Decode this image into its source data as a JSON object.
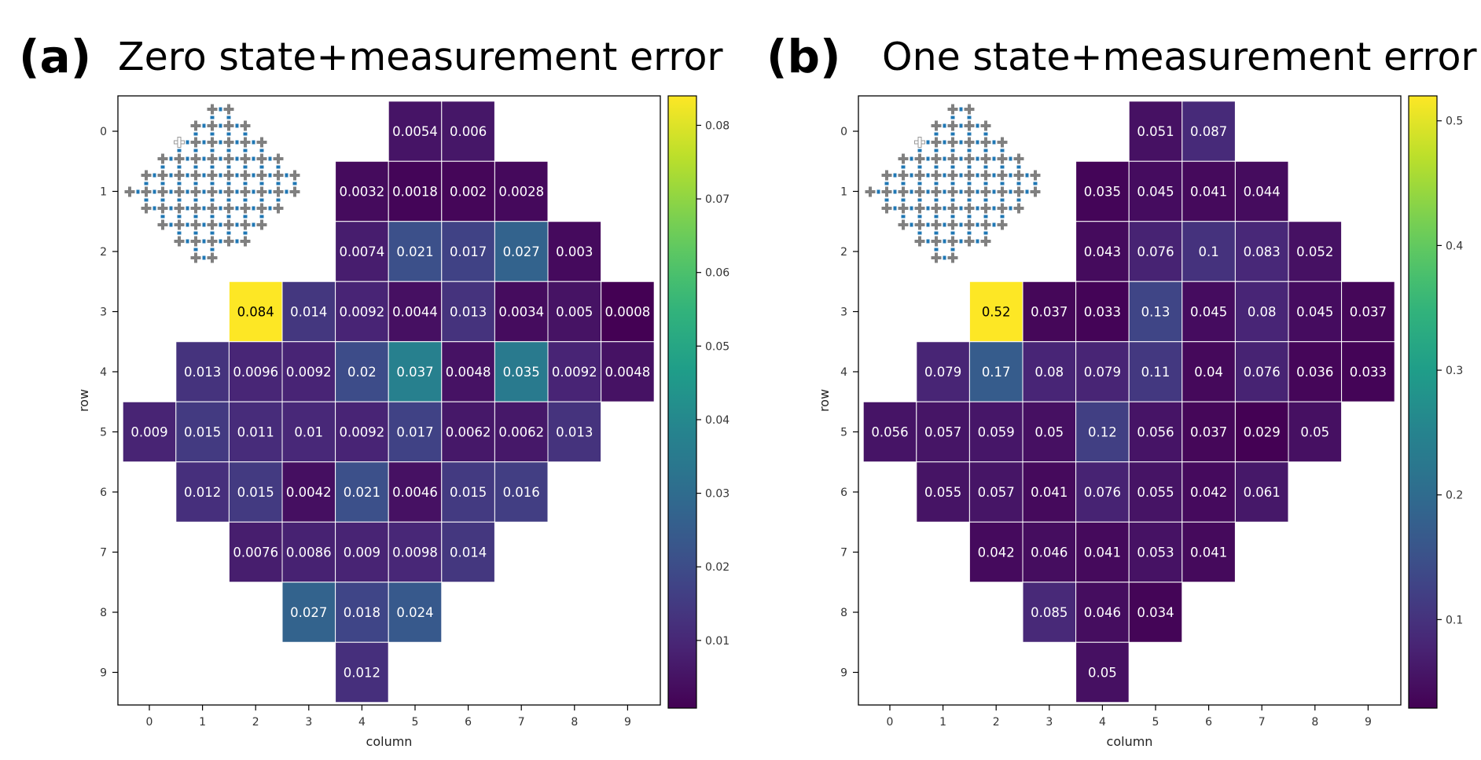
{
  "chart_data": [
    {
      "type": "heatmap",
      "panel_label": "(a)",
      "title": "Zero state+measurement error",
      "xlabel": "column",
      "ylabel": "row",
      "x_ticks": [
        "0",
        "1",
        "2",
        "3",
        "4",
        "5",
        "6",
        "7",
        "8",
        "9"
      ],
      "y_ticks": [
        "0",
        "1",
        "2",
        "3",
        "4",
        "5",
        "6",
        "7",
        "8",
        "9"
      ],
      "colormap": "viridis",
      "vmin": 0.0008,
      "vmax": 0.084,
      "colorbar_ticks": [
        0.01,
        0.02,
        0.03,
        0.04,
        0.05,
        0.06,
        0.07,
        0.08
      ],
      "colorbar_tick_labels": [
        "0.01",
        "0.02",
        "0.03",
        "0.04",
        "0.05",
        "0.06",
        "0.07",
        "0.08"
      ],
      "cells": [
        {
          "row": 0,
          "col": 5,
          "value": 0.0054,
          "label": "0.0054"
        },
        {
          "row": 0,
          "col": 6,
          "value": 0.006,
          "label": "0.006"
        },
        {
          "row": 1,
          "col": 4,
          "value": 0.0032,
          "label": "0.0032"
        },
        {
          "row": 1,
          "col": 5,
          "value": 0.0018,
          "label": "0.0018"
        },
        {
          "row": 1,
          "col": 6,
          "value": 0.002,
          "label": "0.002"
        },
        {
          "row": 1,
          "col": 7,
          "value": 0.0028,
          "label": "0.0028"
        },
        {
          "row": 2,
          "col": 4,
          "value": 0.0074,
          "label": "0.0074"
        },
        {
          "row": 2,
          "col": 5,
          "value": 0.021,
          "label": "0.021"
        },
        {
          "row": 2,
          "col": 6,
          "value": 0.017,
          "label": "0.017"
        },
        {
          "row": 2,
          "col": 7,
          "value": 0.027,
          "label": "0.027"
        },
        {
          "row": 2,
          "col": 8,
          "value": 0.003,
          "label": "0.003"
        },
        {
          "row": 3,
          "col": 2,
          "value": 0.084,
          "label": "0.084"
        },
        {
          "row": 3,
          "col": 3,
          "value": 0.014,
          "label": "0.014"
        },
        {
          "row": 3,
          "col": 4,
          "value": 0.0092,
          "label": "0.0092"
        },
        {
          "row": 3,
          "col": 5,
          "value": 0.0044,
          "label": "0.0044"
        },
        {
          "row": 3,
          "col": 6,
          "value": 0.013,
          "label": "0.013"
        },
        {
          "row": 3,
          "col": 7,
          "value": 0.0034,
          "label": "0.0034"
        },
        {
          "row": 3,
          "col": 8,
          "value": 0.005,
          "label": "0.005"
        },
        {
          "row": 3,
          "col": 9,
          "value": 0.0008,
          "label": "0.0008"
        },
        {
          "row": 4,
          "col": 1,
          "value": 0.013,
          "label": "0.013"
        },
        {
          "row": 4,
          "col": 2,
          "value": 0.0096,
          "label": "0.0096"
        },
        {
          "row": 4,
          "col": 3,
          "value": 0.0092,
          "label": "0.0092"
        },
        {
          "row": 4,
          "col": 4,
          "value": 0.02,
          "label": "0.02"
        },
        {
          "row": 4,
          "col": 5,
          "value": 0.037,
          "label": "0.037"
        },
        {
          "row": 4,
          "col": 6,
          "value": 0.0048,
          "label": "0.0048"
        },
        {
          "row": 4,
          "col": 7,
          "value": 0.035,
          "label": "0.035"
        },
        {
          "row": 4,
          "col": 8,
          "value": 0.0092,
          "label": "0.0092"
        },
        {
          "row": 4,
          "col": 9,
          "value": 0.0048,
          "label": "0.0048"
        },
        {
          "row": 5,
          "col": 0,
          "value": 0.009,
          "label": "0.009"
        },
        {
          "row": 5,
          "col": 1,
          "value": 0.015,
          "label": "0.015"
        },
        {
          "row": 5,
          "col": 2,
          "value": 0.011,
          "label": "0.011"
        },
        {
          "row": 5,
          "col": 3,
          "value": 0.01,
          "label": "0.01"
        },
        {
          "row": 5,
          "col": 4,
          "value": 0.0092,
          "label": "0.0092"
        },
        {
          "row": 5,
          "col": 5,
          "value": 0.017,
          "label": "0.017"
        },
        {
          "row": 5,
          "col": 6,
          "value": 0.0062,
          "label": "0.0062"
        },
        {
          "row": 5,
          "col": 7,
          "value": 0.0062,
          "label": "0.0062"
        },
        {
          "row": 5,
          "col": 8,
          "value": 0.013,
          "label": "0.013"
        },
        {
          "row": 6,
          "col": 1,
          "value": 0.012,
          "label": "0.012"
        },
        {
          "row": 6,
          "col": 2,
          "value": 0.015,
          "label": "0.015"
        },
        {
          "row": 6,
          "col": 3,
          "value": 0.0042,
          "label": "0.0042"
        },
        {
          "row": 6,
          "col": 4,
          "value": 0.021,
          "label": "0.021"
        },
        {
          "row": 6,
          "col": 5,
          "value": 0.0046,
          "label": "0.0046"
        },
        {
          "row": 6,
          "col": 6,
          "value": 0.015,
          "label": "0.015"
        },
        {
          "row": 6,
          "col": 7,
          "value": 0.016,
          "label": "0.016"
        },
        {
          "row": 7,
          "col": 2,
          "value": 0.0076,
          "label": "0.0076"
        },
        {
          "row": 7,
          "col": 3,
          "value": 0.0086,
          "label": "0.0086"
        },
        {
          "row": 7,
          "col": 4,
          "value": 0.009,
          "label": "0.009"
        },
        {
          "row": 7,
          "col": 5,
          "value": 0.0098,
          "label": "0.0098"
        },
        {
          "row": 7,
          "col": 6,
          "value": 0.014,
          "label": "0.014"
        },
        {
          "row": 8,
          "col": 3,
          "value": 0.027,
          "label": "0.027"
        },
        {
          "row": 8,
          "col": 4,
          "value": 0.018,
          "label": "0.018"
        },
        {
          "row": 8,
          "col": 5,
          "value": 0.024,
          "label": "0.024"
        },
        {
          "row": 9,
          "col": 4,
          "value": 0.012,
          "label": "0.012"
        }
      ],
      "inset": "qubit-lattice-diagram"
    },
    {
      "type": "heatmap",
      "panel_label": "(b)",
      "title": "One state+measurement error",
      "xlabel": "column",
      "ylabel": "row",
      "x_ticks": [
        "0",
        "1",
        "2",
        "3",
        "4",
        "5",
        "6",
        "7",
        "8",
        "9"
      ],
      "y_ticks": [
        "0",
        "1",
        "2",
        "3",
        "4",
        "5",
        "6",
        "7",
        "8",
        "9"
      ],
      "colormap": "viridis",
      "vmin": 0.029,
      "vmax": 0.52,
      "colorbar_ticks": [
        0.1,
        0.2,
        0.3,
        0.4,
        0.5
      ],
      "colorbar_tick_labels": [
        "0.1",
        "0.2",
        "0.3",
        "0.4",
        "0.5"
      ],
      "cells": [
        {
          "row": 0,
          "col": 5,
          "value": 0.051,
          "label": "0.051"
        },
        {
          "row": 0,
          "col": 6,
          "value": 0.087,
          "label": "0.087"
        },
        {
          "row": 1,
          "col": 4,
          "value": 0.035,
          "label": "0.035"
        },
        {
          "row": 1,
          "col": 5,
          "value": 0.045,
          "label": "0.045"
        },
        {
          "row": 1,
          "col": 6,
          "value": 0.041,
          "label": "0.041"
        },
        {
          "row": 1,
          "col": 7,
          "value": 0.044,
          "label": "0.044"
        },
        {
          "row": 2,
          "col": 4,
          "value": 0.043,
          "label": "0.043"
        },
        {
          "row": 2,
          "col": 5,
          "value": 0.076,
          "label": "0.076"
        },
        {
          "row": 2,
          "col": 6,
          "value": 0.1,
          "label": "0.1"
        },
        {
          "row": 2,
          "col": 7,
          "value": 0.083,
          "label": "0.083"
        },
        {
          "row": 2,
          "col": 8,
          "value": 0.052,
          "label": "0.052"
        },
        {
          "row": 3,
          "col": 2,
          "value": 0.52,
          "label": "0.52"
        },
        {
          "row": 3,
          "col": 3,
          "value": 0.037,
          "label": "0.037"
        },
        {
          "row": 3,
          "col": 4,
          "value": 0.033,
          "label": "0.033"
        },
        {
          "row": 3,
          "col": 5,
          "value": 0.13,
          "label": "0.13"
        },
        {
          "row": 3,
          "col": 6,
          "value": 0.045,
          "label": "0.045"
        },
        {
          "row": 3,
          "col": 7,
          "value": 0.08,
          "label": "0.08"
        },
        {
          "row": 3,
          "col": 8,
          "value": 0.045,
          "label": "0.045"
        },
        {
          "row": 3,
          "col": 9,
          "value": 0.037,
          "label": "0.037"
        },
        {
          "row": 4,
          "col": 1,
          "value": 0.079,
          "label": "0.079"
        },
        {
          "row": 4,
          "col": 2,
          "value": 0.17,
          "label": "0.17"
        },
        {
          "row": 4,
          "col": 3,
          "value": 0.08,
          "label": "0.08"
        },
        {
          "row": 4,
          "col": 4,
          "value": 0.079,
          "label": "0.079"
        },
        {
          "row": 4,
          "col": 5,
          "value": 0.11,
          "label": "0.11"
        },
        {
          "row": 4,
          "col": 6,
          "value": 0.04,
          "label": "0.04"
        },
        {
          "row": 4,
          "col": 7,
          "value": 0.076,
          "label": "0.076"
        },
        {
          "row": 4,
          "col": 8,
          "value": 0.036,
          "label": "0.036"
        },
        {
          "row": 4,
          "col": 9,
          "value": 0.033,
          "label": "0.033"
        },
        {
          "row": 5,
          "col": 0,
          "value": 0.056,
          "label": "0.056"
        },
        {
          "row": 5,
          "col": 1,
          "value": 0.057,
          "label": "0.057"
        },
        {
          "row": 5,
          "col": 2,
          "value": 0.059,
          "label": "0.059"
        },
        {
          "row": 5,
          "col": 3,
          "value": 0.05,
          "label": "0.05"
        },
        {
          "row": 5,
          "col": 4,
          "value": 0.12,
          "label": "0.12"
        },
        {
          "row": 5,
          "col": 5,
          "value": 0.056,
          "label": "0.056"
        },
        {
          "row": 5,
          "col": 6,
          "value": 0.037,
          "label": "0.037"
        },
        {
          "row": 5,
          "col": 7,
          "value": 0.029,
          "label": "0.029"
        },
        {
          "row": 5,
          "col": 8,
          "value": 0.05,
          "label": "0.05"
        },
        {
          "row": 6,
          "col": 1,
          "value": 0.055,
          "label": "0.055"
        },
        {
          "row": 6,
          "col": 2,
          "value": 0.057,
          "label": "0.057"
        },
        {
          "row": 6,
          "col": 3,
          "value": 0.041,
          "label": "0.041"
        },
        {
          "row": 6,
          "col": 4,
          "value": 0.076,
          "label": "0.076"
        },
        {
          "row": 6,
          "col": 5,
          "value": 0.055,
          "label": "0.055"
        },
        {
          "row": 6,
          "col": 6,
          "value": 0.042,
          "label": "0.042"
        },
        {
          "row": 6,
          "col": 7,
          "value": 0.061,
          "label": "0.061"
        },
        {
          "row": 7,
          "col": 2,
          "value": 0.042,
          "label": "0.042"
        },
        {
          "row": 7,
          "col": 3,
          "value": 0.046,
          "label": "0.046"
        },
        {
          "row": 7,
          "col": 4,
          "value": 0.041,
          "label": "0.041"
        },
        {
          "row": 7,
          "col": 5,
          "value": 0.053,
          "label": "0.053"
        },
        {
          "row": 7,
          "col": 6,
          "value": 0.041,
          "label": "0.041"
        },
        {
          "row": 8,
          "col": 3,
          "value": 0.085,
          "label": "0.085"
        },
        {
          "row": 8,
          "col": 4,
          "value": 0.046,
          "label": "0.046"
        },
        {
          "row": 8,
          "col": 5,
          "value": 0.034,
          "label": "0.034"
        },
        {
          "row": 9,
          "col": 4,
          "value": 0.05,
          "label": "0.05"
        }
      ],
      "inset": "qubit-lattice-diagram"
    }
  ]
}
